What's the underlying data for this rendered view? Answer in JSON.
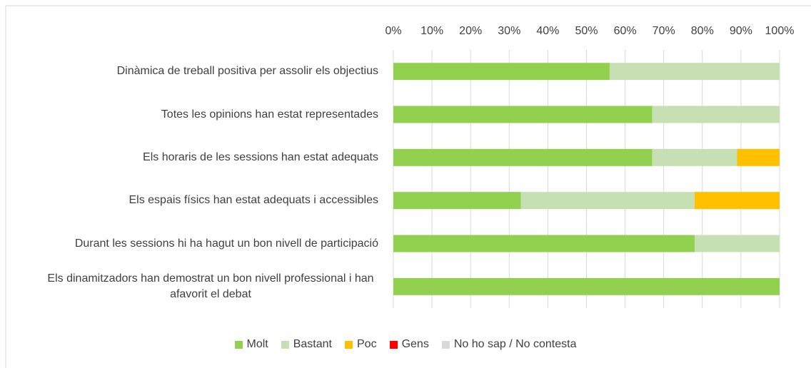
{
  "chart_data": {
    "type": "bar",
    "orientation": "horizontal",
    "stacked": true,
    "categories": [
      "Dinàmica de treball positiva per assolir els objectius",
      "Totes les opinions han estat representades",
      "Els horaris de les sessions han estat adequats",
      "Els espais físics han estat adequats i accessibles",
      "Durant les sessions hi ha hagut un bon nivell de participació",
      "Els dinamitzadors han demostrat un bon nivell professional i han afavorit el debat"
    ],
    "series": [
      {
        "name": "Molt",
        "color": "#92d050",
        "values": [
          56,
          67,
          67,
          33,
          78,
          100
        ]
      },
      {
        "name": "Bastant",
        "color": "#c6e0b4",
        "values": [
          44,
          33,
          22,
          45,
          22,
          0
        ]
      },
      {
        "name": "Poc",
        "color": "#ffc000",
        "values": [
          0,
          0,
          11,
          22,
          0,
          0
        ]
      },
      {
        "name": "Gens",
        "color": "#ff0000",
        "values": [
          0,
          0,
          0,
          0,
          0,
          0
        ]
      },
      {
        "name": "No ho sap / No contesta",
        "color": "#d9d9d9",
        "values": [
          0,
          0,
          0,
          0,
          0,
          0
        ]
      }
    ],
    "xlim": [
      0,
      100
    ],
    "xticks": [
      {
        "value": 0,
        "label": "0%"
      },
      {
        "value": 10,
        "label": "10%"
      },
      {
        "value": 20,
        "label": "20%"
      },
      {
        "value": 30,
        "label": "30%"
      },
      {
        "value": 40,
        "label": "40%"
      },
      {
        "value": 50,
        "label": "50%"
      },
      {
        "value": 60,
        "label": "60%"
      },
      {
        "value": 70,
        "label": "70%"
      },
      {
        "value": 80,
        "label": "80%"
      },
      {
        "value": 90,
        "label": "90%"
      },
      {
        "value": 100,
        "label": "100%"
      }
    ],
    "grid": true,
    "legend": "bottom"
  }
}
